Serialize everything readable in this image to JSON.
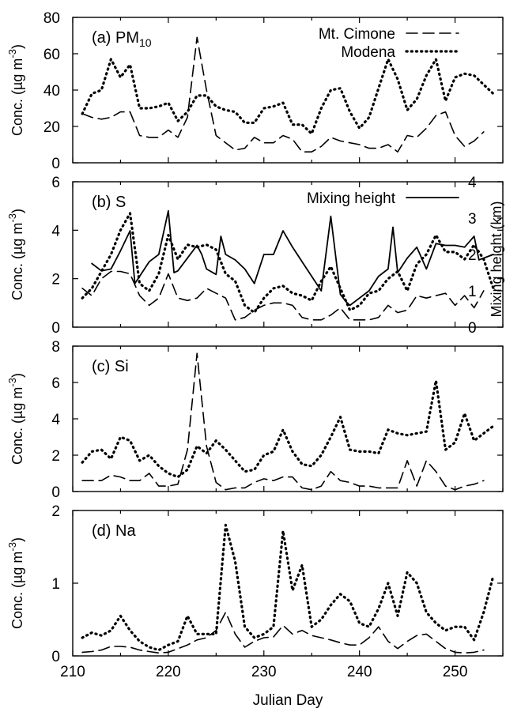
{
  "figure": {
    "xlabel": "Julian Day",
    "x_ticks": [
      210,
      220,
      230,
      240,
      250
    ]
  },
  "chart_data": [
    {
      "type": "line",
      "panel_label": "(a) PM",
      "panel_label_sub": "10",
      "ylabel_main": "Conc. (µg m",
      "ylabel_sup": "-3",
      "ylabel_close": ")",
      "xlim": [
        210,
        255
      ],
      "ylim": [
        0,
        80
      ],
      "y_ticks": [
        0,
        20,
        40,
        60,
        80
      ],
      "legend": [
        {
          "name": "Mt. Cimone",
          "style": "dashed"
        },
        {
          "name": "Modena",
          "style": "dotted"
        }
      ],
      "series": [
        {
          "name": "Mt. Cimone",
          "style": "dashed",
          "x": [
            211,
            212,
            213,
            214,
            215,
            216,
            217,
            218,
            219,
            220,
            221,
            222,
            223,
            224,
            225,
            226,
            227,
            228,
            229,
            230,
            231,
            232,
            233,
            234,
            235,
            236,
            237,
            238,
            239,
            240,
            241,
            242,
            243,
            244,
            245,
            246,
            247,
            248,
            249,
            250,
            251,
            252,
            253
          ],
          "y": [
            27,
            25,
            24,
            25,
            28,
            28,
            15,
            14,
            14,
            18,
            14,
            25,
            69,
            40,
            15,
            11,
            7,
            8,
            14,
            11,
            11,
            15,
            13,
            6,
            6,
            9,
            14,
            12,
            11,
            10,
            8,
            8,
            10,
            6,
            15,
            14,
            19,
            26,
            28,
            15,
            9,
            12,
            17
          ]
        },
        {
          "name": "Modena",
          "style": "dotted",
          "x": [
            211,
            212,
            213,
            214,
            215,
            216,
            217,
            218,
            219,
            220,
            221,
            222,
            223,
            224,
            225,
            226,
            227,
            228,
            229,
            230,
            231,
            232,
            233,
            234,
            235,
            236,
            237,
            238,
            239,
            240,
            241,
            242,
            243,
            244,
            245,
            246,
            247,
            248,
            249,
            250,
            251,
            252,
            253,
            254
          ],
          "y": [
            27,
            38,
            40,
            57,
            47,
            54,
            30,
            30,
            31,
            33,
            23,
            28,
            37,
            37,
            31,
            29,
            28,
            22,
            22,
            30,
            31,
            33,
            21,
            21,
            16,
            30,
            40,
            41,
            28,
            19,
            25,
            41,
            57,
            46,
            29,
            35,
            48,
            57,
            34,
            47,
            49,
            48,
            43,
            38
          ]
        }
      ]
    },
    {
      "type": "line",
      "panel_label": "(b) S",
      "ylabel_main": "Conc. (µg m",
      "ylabel_sup": "-3",
      "ylabel_close": ")",
      "y2label": "Mixing height (km)",
      "xlim": [
        210,
        255
      ],
      "ylim": [
        0,
        6
      ],
      "y_ticks": [
        0,
        2,
        4,
        6
      ],
      "y2lim": [
        0,
        4
      ],
      "y2_ticks": [
        0,
        1,
        2,
        3,
        4
      ],
      "legend": [
        {
          "name": "Mixing height",
          "style": "solid"
        }
      ],
      "series": [
        {
          "name": "Mt. Cimone",
          "style": "dashed",
          "axis": "left",
          "x": [
            211,
            212,
            213,
            214,
            215,
            216,
            217,
            218,
            219,
            220,
            221,
            222,
            223,
            224,
            225,
            226,
            227,
            228,
            229,
            230,
            231,
            232,
            233,
            234,
            235,
            236,
            237,
            238,
            239,
            240,
            241,
            242,
            243,
            244,
            245,
            246,
            247,
            248,
            249,
            250,
            251,
            252,
            253
          ],
          "y": [
            1.6,
            1.3,
            2.0,
            2.3,
            2.3,
            2.2,
            1.3,
            0.9,
            1.2,
            2.2,
            1.2,
            1.1,
            1.2,
            1.6,
            1.4,
            1.2,
            0.3,
            0.4,
            0.7,
            0.9,
            1.0,
            1.0,
            0.9,
            0.4,
            0.3,
            0.3,
            0.5,
            0.8,
            0.3,
            0.3,
            0.3,
            0.4,
            0.9,
            0.6,
            0.7,
            1.3,
            1.2,
            1.3,
            1.4,
            0.9,
            1.3,
            0.8,
            1.5
          ]
        },
        {
          "name": "Modena",
          "style": "dotted",
          "axis": "left",
          "x": [
            211,
            212,
            213,
            214,
            215,
            216,
            217,
            218,
            219,
            220,
            221,
            222,
            223,
            224,
            225,
            226,
            227,
            228,
            229,
            230,
            231,
            232,
            233,
            234,
            235,
            236,
            237,
            238,
            239,
            240,
            241,
            242,
            243,
            244,
            245,
            246,
            247,
            248,
            249,
            250,
            251,
            252,
            253,
            254
          ],
          "y": [
            1.2,
            1.6,
            2.3,
            3.0,
            4.0,
            4.7,
            1.8,
            1.5,
            2.2,
            3.8,
            2.8,
            3.4,
            3.3,
            3.4,
            3.2,
            2.2,
            1.9,
            0.9,
            0.6,
            1.2,
            1.6,
            1.7,
            1.4,
            1.3,
            1.1,
            1.9,
            2.5,
            1.6,
            0.7,
            0.9,
            1.4,
            1.5,
            2.0,
            2.3,
            1.5,
            2.6,
            3.0,
            3.8,
            3.1,
            3.1,
            2.8,
            3.4,
            2.8,
            1.6
          ]
        },
        {
          "name": "Mixing height",
          "style": "solid",
          "axis": "right",
          "x": [
            212,
            213,
            214,
            215,
            216,
            216.5,
            217.5,
            218,
            219,
            220,
            220.6,
            221,
            222,
            223,
            223.5,
            224,
            225,
            225.5,
            226,
            227,
            228,
            229,
            230,
            231,
            232,
            233,
            234,
            235,
            236,
            237,
            238,
            238.6,
            239,
            240,
            241,
            242,
            243,
            243.5,
            244,
            245,
            246,
            247,
            248,
            249,
            250,
            251,
            252,
            252.5,
            253,
            254
          ],
          "y": [
            1.75,
            1.55,
            1.6,
            2.1,
            2.65,
            1.2,
            1.6,
            1.8,
            2.0,
            3.2,
            1.5,
            1.55,
            1.9,
            2.25,
            2.0,
            1.6,
            1.45,
            2.5,
            2.0,
            1.85,
            1.6,
            1.2,
            2.0,
            2.0,
            2.65,
            2.2,
            1.8,
            1.4,
            1.0,
            3.05,
            0.9,
            0.7,
            0.6,
            0.8,
            1.0,
            1.4,
            1.6,
            2.75,
            1.5,
            1.9,
            2.2,
            1.6,
            2.3,
            2.25,
            2.25,
            2.2,
            2.5,
            1.85,
            1.9,
            2.0
          ]
        }
      ]
    },
    {
      "type": "line",
      "panel_label": "(c) Si",
      "ylabel_main": "Conc. (µg m",
      "ylabel_sup": "-3",
      "ylabel_close": ")",
      "xlim": [
        210,
        255
      ],
      "ylim": [
        0,
        8
      ],
      "y_ticks": [
        0,
        2,
        4,
        6,
        8
      ],
      "series": [
        {
          "name": "Mt. Cimone",
          "style": "dashed",
          "x": [
            211,
            212,
            213,
            214,
            215,
            216,
            217,
            218,
            219,
            220,
            221,
            222,
            223,
            224,
            225,
            226,
            227,
            228,
            229,
            230,
            231,
            232,
            233,
            234,
            235,
            236,
            237,
            238,
            239,
            240,
            241,
            242,
            243,
            244,
            245,
            246,
            247,
            248,
            249,
            250,
            251,
            252,
            253
          ],
          "y": [
            0.6,
            0.6,
            0.6,
            0.9,
            0.8,
            0.6,
            0.6,
            1.0,
            0.3,
            0.3,
            0.4,
            2.3,
            7.6,
            2.5,
            0.5,
            0.1,
            0.2,
            0.2,
            0.5,
            0.7,
            0.6,
            0.8,
            0.8,
            0.2,
            0.1,
            0.3,
            1.1,
            0.6,
            0.5,
            0.3,
            0.3,
            0.2,
            0.2,
            0.2,
            1.7,
            0.3,
            1.7,
            1.1,
            0.3,
            0.1,
            0.3,
            0.4,
            0.6
          ]
        },
        {
          "name": "Modena",
          "style": "dotted",
          "x": [
            211,
            212,
            213,
            214,
            215,
            216,
            217,
            218,
            219,
            220,
            221,
            222,
            223,
            224,
            225,
            226,
            227,
            228,
            229,
            230,
            231,
            232,
            233,
            234,
            235,
            236,
            237,
            238,
            239,
            240,
            241,
            242,
            243,
            244,
            245,
            246,
            247,
            248,
            249,
            250,
            251,
            252,
            253,
            254
          ],
          "y": [
            1.6,
            2.2,
            2.3,
            1.8,
            3.0,
            2.8,
            1.7,
            2.0,
            1.4,
            1.0,
            0.8,
            1.2,
            2.5,
            2.1,
            2.8,
            2.3,
            1.7,
            1.1,
            1.2,
            2.0,
            2.2,
            3.4,
            2.2,
            1.5,
            1.4,
            2.0,
            3.0,
            4.1,
            2.3,
            2.2,
            2.2,
            2.1,
            3.4,
            3.2,
            3.1,
            3.2,
            3.3,
            6.1,
            2.3,
            2.7,
            4.3,
            2.8,
            3.2,
            3.6
          ]
        }
      ]
    },
    {
      "type": "line",
      "panel_label": "(d) Na",
      "ylabel_main": "Conc. (µg m",
      "ylabel_sup": "-3",
      "ylabel_close": ")",
      "xlim": [
        210,
        255
      ],
      "ylim": [
        0,
        2
      ],
      "y_ticks": [
        0,
        1,
        2
      ],
      "series": [
        {
          "name": "Mt. Cimone",
          "style": "dashed",
          "x": [
            211,
            212,
            213,
            214,
            215,
            216,
            217,
            218,
            219,
            220,
            221,
            222,
            223,
            224,
            225,
            226,
            227,
            228,
            229,
            230,
            231,
            232,
            233,
            234,
            235,
            236,
            237,
            238,
            239,
            240,
            241,
            242,
            243,
            244,
            245,
            246,
            247,
            248,
            249,
            250,
            251,
            252,
            253
          ],
          "y": [
            0.05,
            0.06,
            0.08,
            0.13,
            0.13,
            0.12,
            0.08,
            0.06,
            0.04,
            0.05,
            0.1,
            0.15,
            0.22,
            0.25,
            0.35,
            0.6,
            0.3,
            0.12,
            0.2,
            0.25,
            0.26,
            0.42,
            0.3,
            0.35,
            0.28,
            0.25,
            0.22,
            0.18,
            0.15,
            0.15,
            0.25,
            0.4,
            0.2,
            0.1,
            0.2,
            0.28,
            0.3,
            0.2,
            0.1,
            0.05,
            0.04,
            0.05,
            0.08
          ]
        },
        {
          "name": "Modena",
          "style": "dotted",
          "x": [
            211,
            212,
            213,
            214,
            215,
            216,
            217,
            218,
            219,
            220,
            221,
            222,
            223,
            224,
            225,
            226,
            227,
            228,
            229,
            230,
            231,
            232,
            233,
            234,
            235,
            236,
            237,
            238,
            239,
            240,
            241,
            242,
            243,
            244,
            245,
            246,
            247,
            248,
            249,
            250,
            251,
            252,
            253,
            254
          ],
          "y": [
            0.25,
            0.32,
            0.28,
            0.35,
            0.55,
            0.35,
            0.2,
            0.12,
            0.08,
            0.15,
            0.2,
            0.55,
            0.3,
            0.3,
            0.3,
            1.8,
            1.3,
            0.4,
            0.25,
            0.3,
            0.4,
            1.72,
            0.9,
            1.25,
            0.4,
            0.5,
            0.7,
            0.85,
            0.75,
            0.45,
            0.4,
            0.65,
            1.0,
            0.55,
            1.15,
            1.0,
            0.6,
            0.45,
            0.35,
            0.4,
            0.4,
            0.22,
            0.6,
            1.1
          ]
        }
      ]
    }
  ]
}
